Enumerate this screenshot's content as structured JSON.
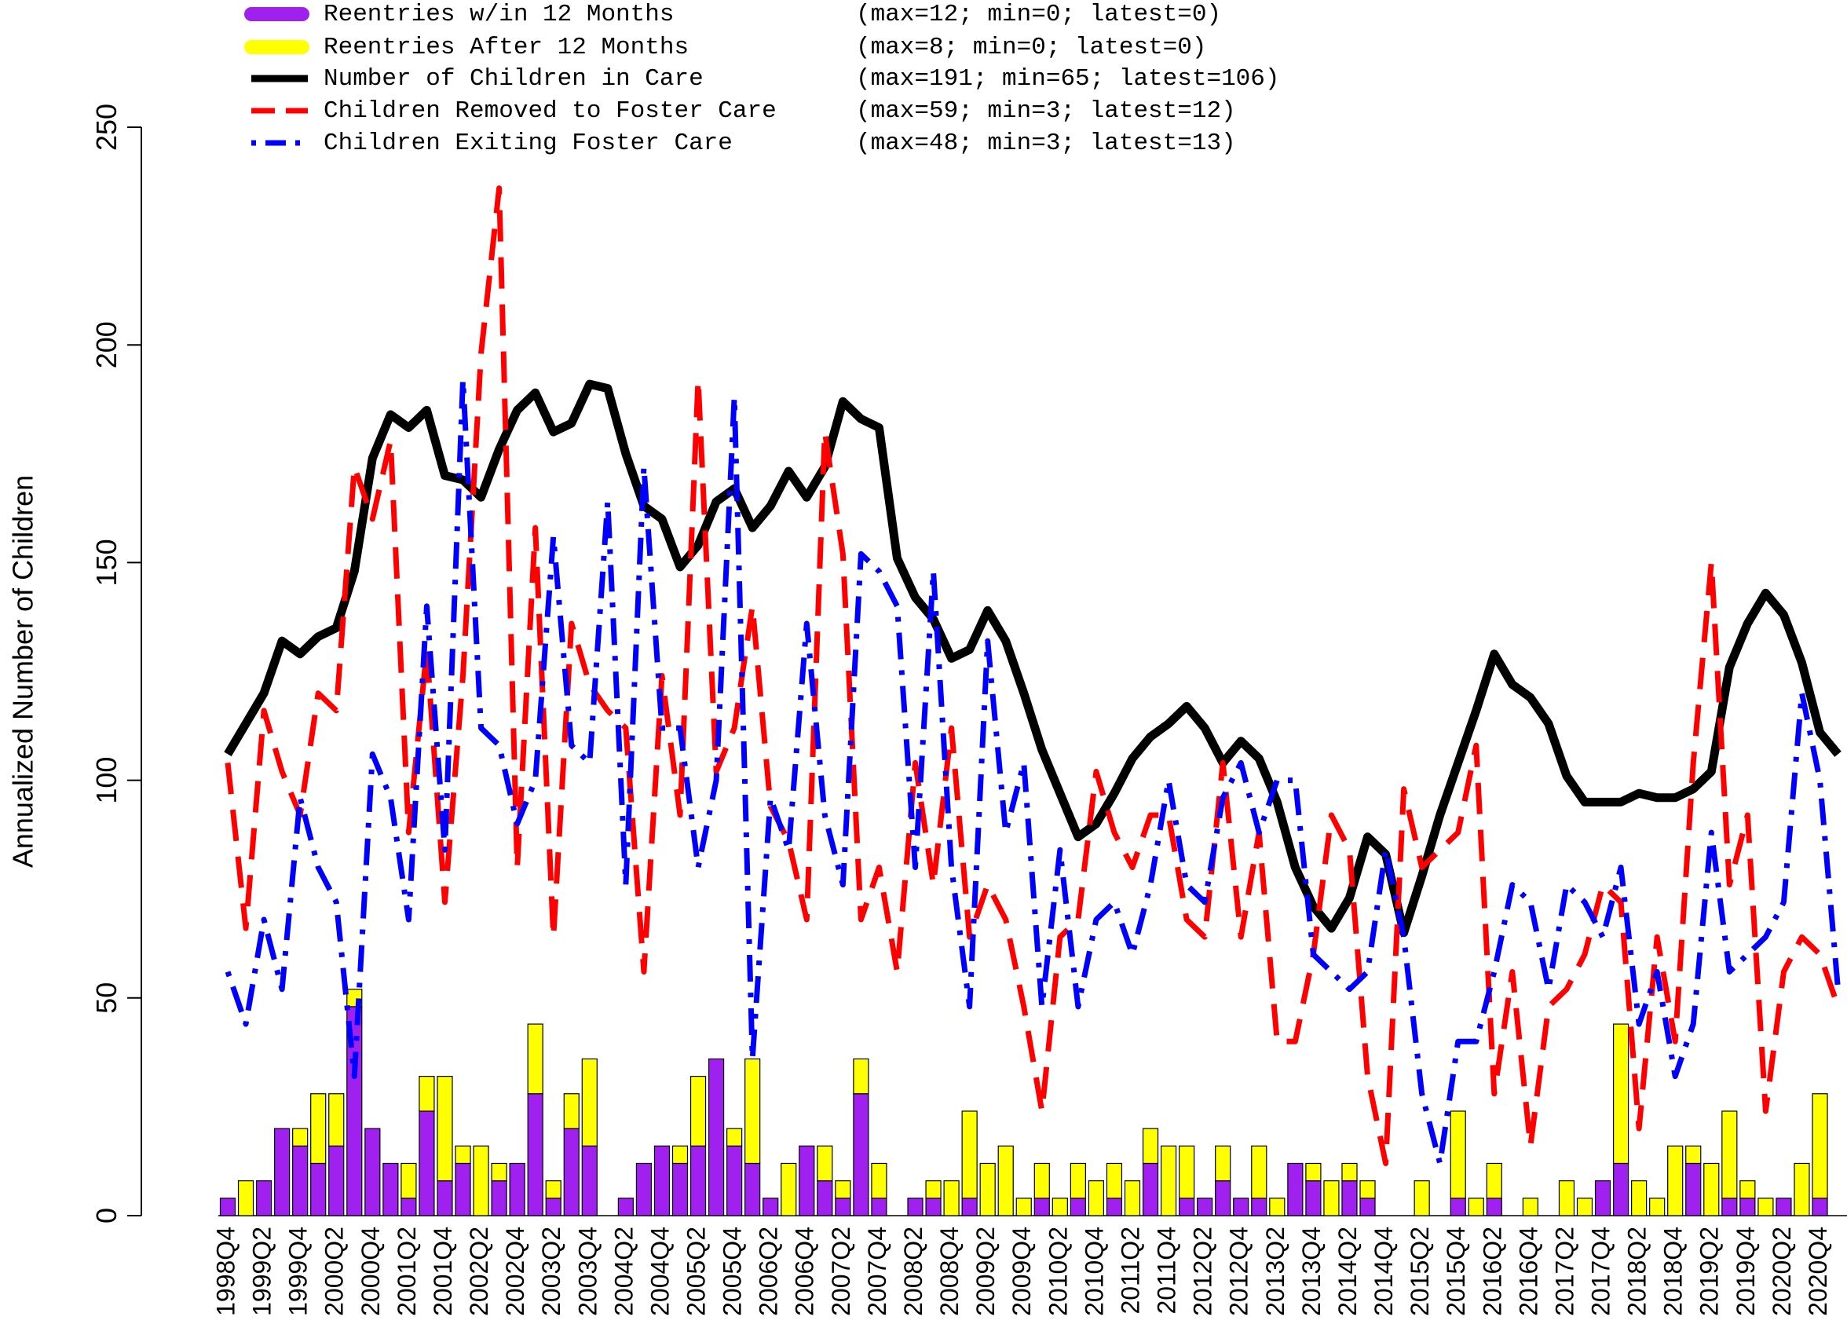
{
  "chart_data": {
    "type": "bar",
    "y_label": "Annualized Number of Children",
    "ylim": [
      0,
      250
    ],
    "yticks": [
      0,
      50,
      100,
      150,
      200,
      250
    ],
    "grid": false,
    "legend": "top-left",
    "categories": [
      "1998Q4",
      null,
      "1999Q2",
      null,
      "1999Q4",
      null,
      "2000Q2",
      null,
      "2000Q4",
      null,
      "2001Q2",
      null,
      "2001Q4",
      null,
      "2002Q2",
      null,
      "2002Q4",
      null,
      "2003Q2",
      null,
      "2003Q4",
      null,
      "2004Q2",
      null,
      "2004Q4",
      null,
      "2005Q2",
      null,
      "2005Q4",
      null,
      "2006Q2",
      null,
      "2006Q4",
      null,
      "2007Q2",
      null,
      "2007Q4",
      null,
      "2008Q2",
      null,
      "2008Q4",
      null,
      "2009Q2",
      null,
      "2009Q4",
      null,
      "2010Q2",
      null,
      "2010Q4",
      null,
      "2011Q2",
      null,
      "2011Q4",
      null,
      "2012Q2",
      null,
      "2012Q4",
      null,
      "2013Q2",
      null,
      "2013Q4",
      null,
      "2014Q2",
      null,
      "2014Q4",
      null,
      "2015Q2",
      null,
      "2015Q4",
      null,
      "2016Q2",
      null,
      "2016Q4",
      null,
      "2017Q2",
      null,
      "2017Q4",
      null,
      "2018Q2",
      null,
      "2018Q4",
      null,
      "2019Q2",
      null,
      "2019Q4",
      null,
      "2020Q2",
      null,
      "2020Q4",
      null
    ],
    "series": [
      {
        "name": "Reentries w/in 12 Months",
        "legend_note": "(max=12; min=0; latest=0)",
        "type": "bar",
        "stacked": true,
        "color": "#a020f0",
        "values": [
          4,
          0,
          8,
          20,
          16,
          12,
          16,
          48,
          20,
          12,
          4,
          24,
          8,
          12,
          0,
          8,
          12,
          28,
          4,
          20,
          16,
          0,
          4,
          12,
          16,
          12,
          16,
          36,
          16,
          12,
          4,
          0,
          16,
          8,
          4,
          28,
          4,
          0,
          4,
          4,
          0,
          4,
          0,
          0,
          0,
          4,
          0,
          4,
          0,
          4,
          0,
          12,
          0,
          4,
          4,
          8,
          4,
          4,
          0,
          12,
          8,
          0,
          8,
          4,
          0,
          0,
          0,
          0,
          4,
          0,
          4,
          0,
          0,
          0,
          0,
          0,
          8,
          12,
          0,
          0,
          0,
          12,
          0,
          4,
          4,
          0,
          4,
          0,
          4,
          0
        ]
      },
      {
        "name": "Reentries After 12 Months",
        "legend_note": "(max=8; min=0; latest=0)",
        "type": "bar",
        "stacked": true,
        "color": "#ffff00",
        "values": [
          0,
          8,
          0,
          0,
          4,
          16,
          12,
          4,
          0,
          0,
          8,
          8,
          24,
          4,
          16,
          4,
          0,
          16,
          4,
          8,
          20,
          0,
          0,
          0,
          0,
          4,
          16,
          0,
          4,
          24,
          0,
          12,
          0,
          8,
          4,
          8,
          8,
          0,
          0,
          4,
          8,
          20,
          12,
          16,
          4,
          8,
          4,
          8,
          8,
          8,
          8,
          8,
          16,
          12,
          0,
          8,
          0,
          12,
          4,
          0,
          4,
          8,
          4,
          4,
          0,
          0,
          8,
          0,
          20,
          4,
          8,
          0,
          4,
          0,
          8,
          4,
          0,
          32,
          8,
          4,
          16,
          4,
          12,
          20,
          4,
          4,
          0,
          12,
          24,
          0
        ]
      },
      {
        "name": "Number of Children in Care",
        "legend_note": "(max=191; min=65; latest=106)",
        "type": "line",
        "style": "solid",
        "color": "#000000",
        "values": [
          106,
          113,
          120,
          132,
          129,
          133,
          135,
          148,
          174,
          184,
          181,
          185,
          170,
          169,
          165,
          176,
          185,
          189,
          180,
          182,
          191,
          190,
          175,
          163,
          160,
          149,
          154,
          164,
          167,
          158,
          163,
          171,
          165,
          172,
          187,
          183,
          181,
          151,
          142,
          137,
          128,
          130,
          139,
          132,
          120,
          107,
          97,
          87,
          90,
          97,
          105,
          110,
          113,
          117,
          112,
          104,
          109,
          105,
          95,
          80,
          71,
          66,
          73,
          87,
          83,
          65,
          78,
          92,
          104,
          116,
          129,
          122,
          119,
          113,
          101,
          95,
          95,
          95,
          97,
          96,
          96,
          98,
          102,
          126,
          136,
          143,
          138,
          127,
          111,
          106
        ]
      },
      {
        "name": "Children Removed to Foster Care",
        "legend_note": "(max=59; min=3; latest=12)",
        "type": "line",
        "style": "dashed",
        "color": "#ff0000",
        "values": [
          104,
          66,
          116,
          102,
          92,
          120,
          116,
          172,
          160,
          178,
          88,
          130,
          72,
          124,
          198,
          236,
          80,
          158,
          64,
          136,
          122,
          116,
          112,
          56,
          124,
          92,
          192,
          102,
          112,
          140,
          94,
          86,
          68,
          180,
          152,
          68,
          80,
          56,
          104,
          76,
          112,
          64,
          76,
          68,
          48,
          24,
          64,
          68,
          102,
          88,
          80,
          92,
          92,
          68,
          64,
          104,
          64,
          88,
          40,
          40,
          60,
          92,
          84,
          32,
          12,
          98,
          80,
          84,
          88,
          108,
          28,
          56,
          16,
          48,
          52,
          60,
          76,
          72,
          20,
          64,
          40,
          104,
          150,
          76,
          92,
          24,
          56,
          64,
          60,
          48
        ]
      },
      {
        "name": "Children Exiting Foster Care",
        "legend_note": "(max=48; min=3; latest=13)",
        "type": "line",
        "style": "dotdash",
        "color": "#0000ff",
        "values": [
          56,
          44,
          68,
          52,
          96,
          80,
          72,
          32,
          106,
          96,
          68,
          140,
          84,
          192,
          112,
          108,
          90,
          100,
          156,
          108,
          104,
          164,
          76,
          172,
          112,
          112,
          80,
          100,
          188,
          36,
          96,
          84,
          136,
          92,
          76,
          152,
          148,
          140,
          80,
          148,
          80,
          48,
          132,
          88,
          104,
          48,
          84,
          48,
          68,
          72,
          60,
          76,
          100,
          76,
          72,
          96,
          104,
          88,
          100,
          100,
          60,
          56,
          52,
          56,
          84,
          64,
          28,
          12,
          40,
          40,
          56,
          76,
          72,
          52,
          76,
          72,
          64,
          80,
          44,
          56,
          32,
          44,
          88,
          56,
          60,
          64,
          72,
          120,
          100,
          52
        ]
      }
    ]
  }
}
